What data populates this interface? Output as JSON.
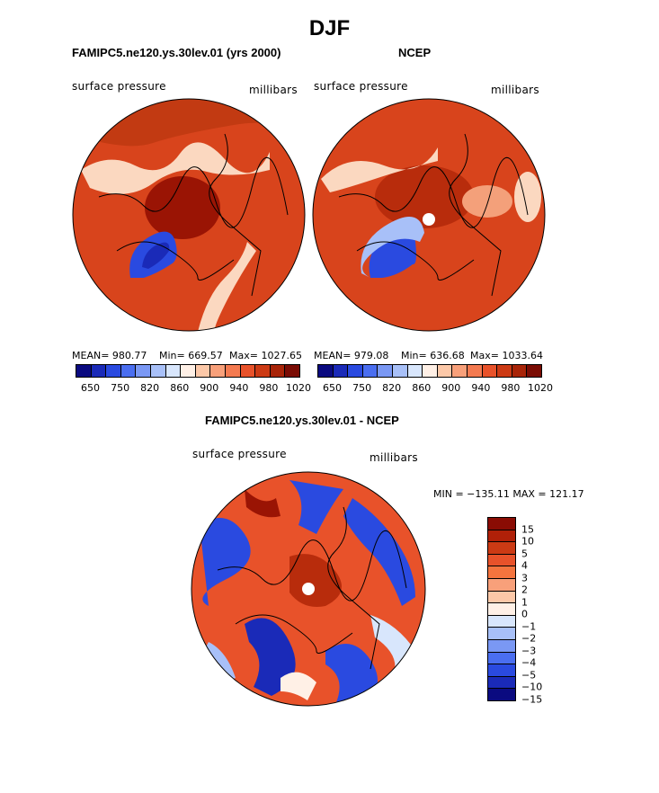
{
  "figure": {
    "title": "DJF"
  },
  "panels": {
    "model": {
      "title": "FAMIPC5.ne120.ys.30lev.01 (yrs 2000)",
      "variable": "surface pressure",
      "units": "millibars",
      "mean_label": "MEAN= 980.77",
      "min_label": "Min= 669.57",
      "max_label": "Max= 1027.65"
    },
    "obs": {
      "title": "NCEP",
      "variable": "surface pressure",
      "units": "millibars",
      "mean_label": "MEAN= 979.08",
      "min_label": "Min= 636.68",
      "max_label": "Max= 1033.64"
    },
    "diff": {
      "title": "FAMIPC5.ne120.ys.30lev.01 - NCEP",
      "variable": "surface pressure",
      "units": "millibars",
      "minmax_label": "MIN = −135.11 MAX = 121.17"
    }
  },
  "colorbar_abs": {
    "ticks": [
      "650",
      "750",
      "820",
      "860",
      "900",
      "940",
      "980",
      "1020"
    ],
    "colors": [
      "#0a0a80",
      "#1a2ab8",
      "#2a4ae0",
      "#4a6ef0",
      "#7a98f4",
      "#a8c0f8",
      "#d8e6fc",
      "#fff0e6",
      "#fcc8a8",
      "#f8a07a",
      "#f47a50",
      "#e8522a",
      "#cc3a14",
      "#a82408",
      "#7a0c04"
    ]
  },
  "colorbar_diff": {
    "ticks": [
      "15",
      "10",
      "5",
      "4",
      "3",
      "2",
      "1",
      "0",
      "−1",
      "−2",
      "−3",
      "−4",
      "−5",
      "−10",
      "−15"
    ],
    "colors": [
      "#8a0c04",
      "#b02008",
      "#cc3a14",
      "#e8522a",
      "#f4743e",
      "#f8a07a",
      "#fcc8a8",
      "#fff0e6",
      "#d8e6fc",
      "#a8c0f8",
      "#7a98f4",
      "#4a6ef0",
      "#2a4ae0",
      "#1a2ab8",
      "#0a0a80"
    ]
  },
  "colors": {
    "base_red": "#d8441c",
    "dark_red": "#9a1404",
    "blue": "#2a4ae0",
    "light": "#fde4d2"
  }
}
